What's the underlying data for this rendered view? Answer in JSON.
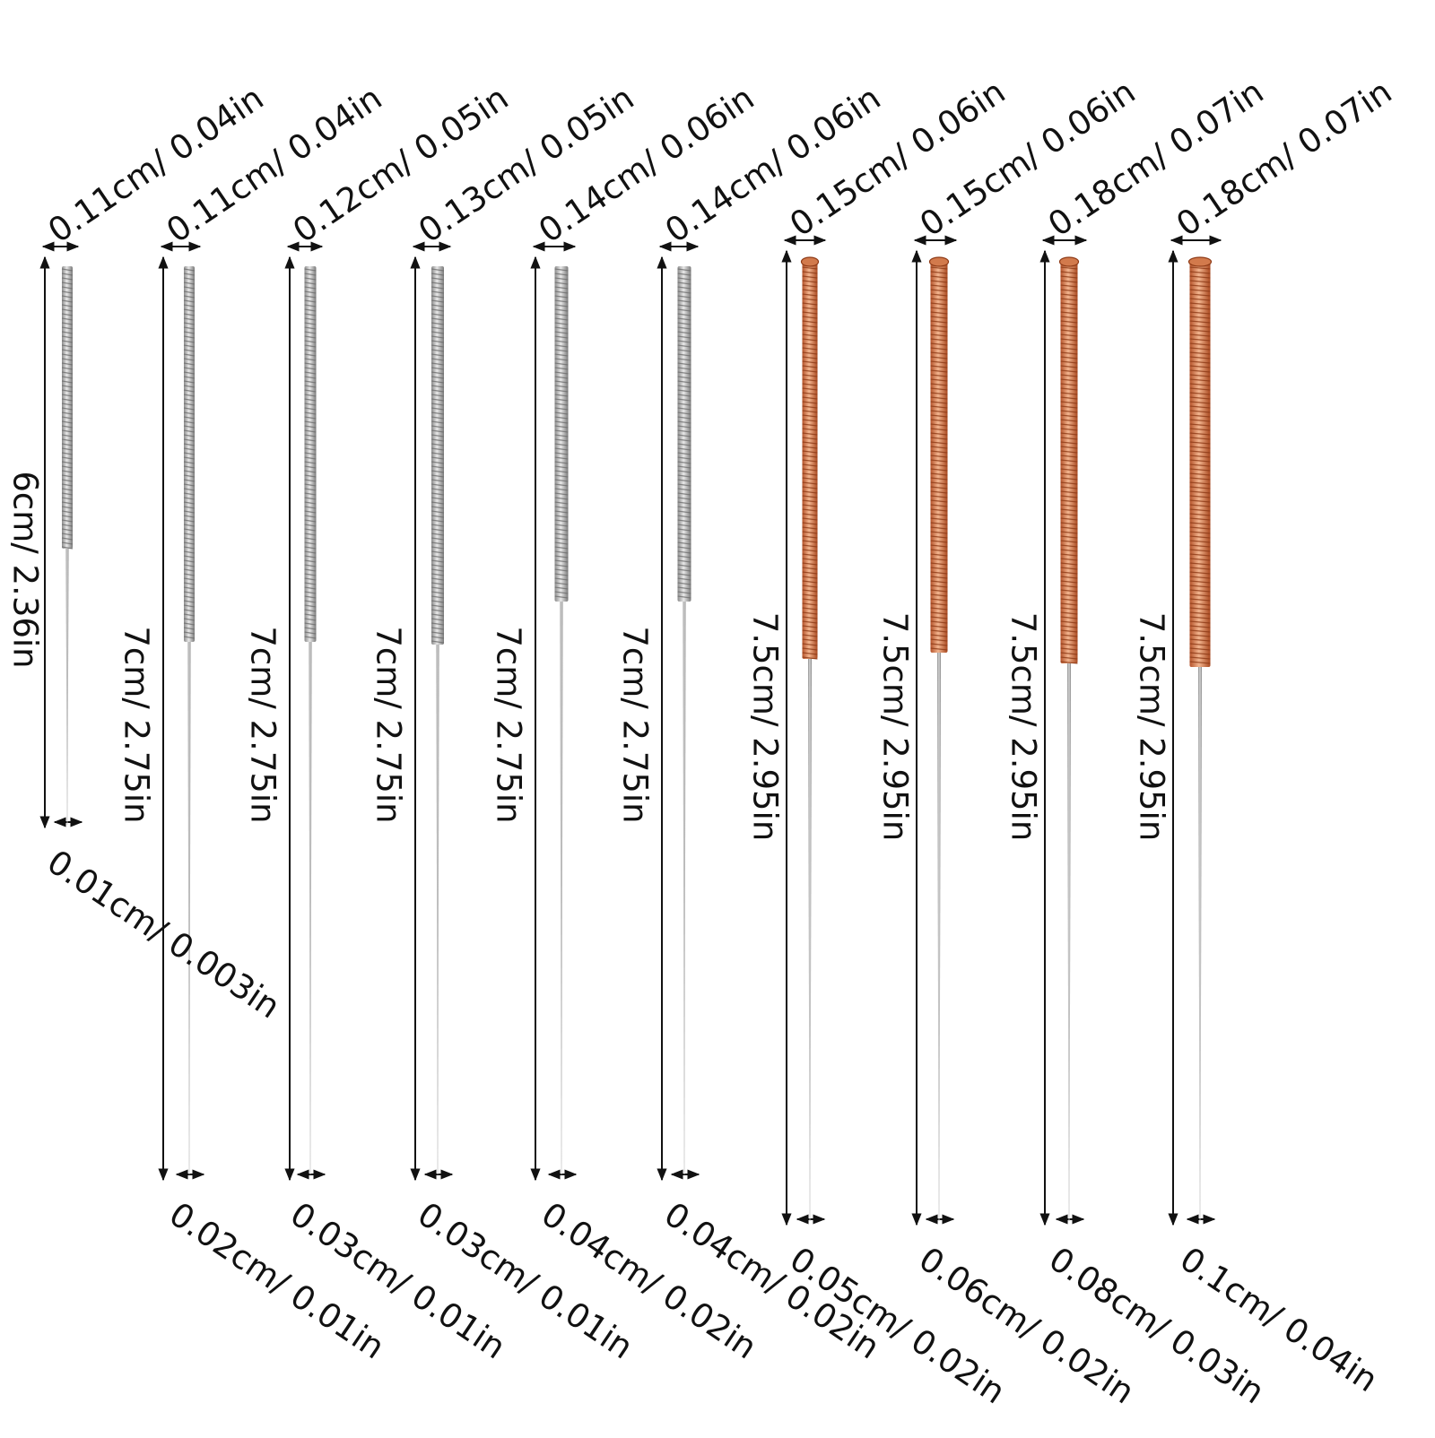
{
  "needles": [
    {
      "top_label": "0.11cm/ 0.04in",
      "length_label": "6cm/ 2.36in",
      "bottom_label": "0.01cm/ 0.003in",
      "handle": "silver"
    },
    {
      "top_label": "0.11cm/ 0.04in",
      "length_label": "7cm/ 2.75in",
      "bottom_label": "0.02cm/ 0.01in",
      "handle": "silver"
    },
    {
      "top_label": "0.12cm/ 0.05in",
      "length_label": "7cm/ 2.75in",
      "bottom_label": "0.03cm/ 0.01in",
      "handle": "silver"
    },
    {
      "top_label": "0.13cm/ 0.05in",
      "length_label": "7cm/ 2.75in",
      "bottom_label": "0.03cm/ 0.01in",
      "handle": "silver"
    },
    {
      "top_label": "0.14cm/ 0.06in",
      "length_label": "7cm/ 2.75in",
      "bottom_label": "0.04cm/ 0.02in",
      "handle": "silver"
    },
    {
      "top_label": "0.14cm/ 0.06in",
      "length_label": "7cm/ 2.75in",
      "bottom_label": "0.04cm/ 0.02in",
      "handle": "silver"
    },
    {
      "top_label": "0.15cm/ 0.06in",
      "length_label": "7.5cm/ 2.95in",
      "bottom_label": "0.05cm/ 0.02in",
      "handle": "copper"
    },
    {
      "top_label": "0.15cm/ 0.06in",
      "length_label": "7.5cm/ 2.95in",
      "bottom_label": "0.06cm/ 0.02in",
      "handle": "copper"
    },
    {
      "top_label": "0.18cm/ 0.07in",
      "length_label": "7.5cm/ 2.95in",
      "bottom_label": "0.08cm/ 0.03in",
      "handle": "copper"
    },
    {
      "top_label": "0.18cm/ 0.07in",
      "length_label": "7.5cm/ 2.95in",
      "bottom_label": "0.1cm/ 0.04in",
      "handle": "copper"
    }
  ],
  "colors": {
    "background": "#ffffff",
    "text": "#111111",
    "dimension_line": "#111111",
    "silver_handle": "#9a9a9a",
    "silver_handle_highlight": "#e4e4e4",
    "copper_handle": "#c8663a",
    "copper_handle_highlight": "#f0b08a",
    "needle_shaft": "#9c9c9c"
  }
}
